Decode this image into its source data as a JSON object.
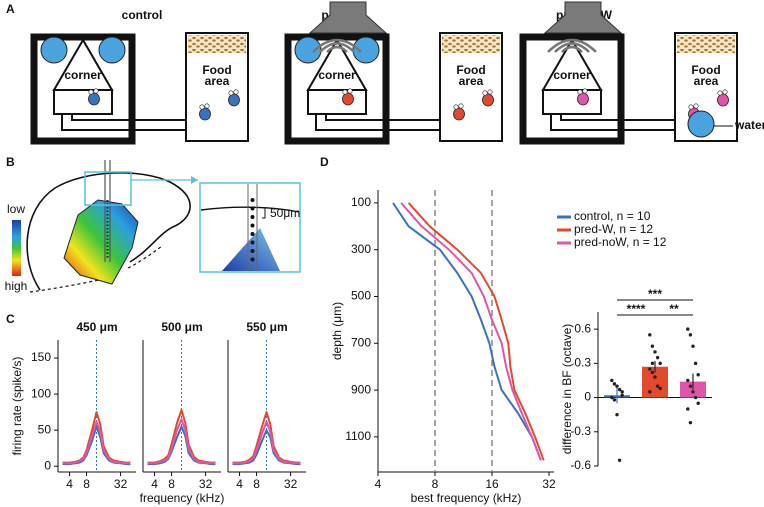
{
  "panel_labels": [
    "A",
    "B",
    "C",
    "D"
  ],
  "diagram_a": {
    "setups": [
      {
        "title": "control",
        "color": "#3b72bf",
        "corner": "corner",
        "food": [
          "Food",
          "area"
        ]
      },
      {
        "title": "pred-W",
        "color": "#e24a2c",
        "corner": "corner",
        "food": [
          "Food",
          "area"
        ]
      },
      {
        "title": "pred-noW",
        "color": "#e155a8",
        "corner": "corner",
        "food": [
          "Food",
          "area"
        ]
      }
    ],
    "water": "water"
  },
  "diagram_b": {
    "scale_low": "low",
    "scale_high": "high",
    "scale_bar": "50μm"
  },
  "chart_data": [
    {
      "type": "line",
      "title": "450 μm",
      "ylabel": "firing rate (spike/s)",
      "log_x": true,
      "x": [
        3,
        4,
        5,
        6,
        7,
        8,
        10,
        12,
        14,
        16,
        20,
        24,
        32,
        40,
        48
      ],
      "xlim": [
        2.5,
        60
      ],
      "xticks": [
        4,
        8,
        32
      ],
      "ylim": [
        -8,
        175
      ],
      "yticks": [
        0,
        50,
        100,
        150
      ],
      "vline": 12,
      "series": [
        {
          "name": "control",
          "color": "#3b72bf",
          "values": [
            3,
            3,
            4,
            5,
            8,
            15,
            35,
            55,
            40,
            18,
            8,
            5,
            4,
            3,
            3
          ]
        },
        {
          "name": "pred-W",
          "color": "#e24a2c",
          "values": [
            5,
            5,
            6,
            8,
            12,
            22,
            50,
            75,
            58,
            28,
            12,
            8,
            6,
            5,
            5
          ]
        },
        {
          "name": "pred-noW",
          "color": "#e155a8",
          "values": [
            4,
            4,
            5,
            7,
            10,
            18,
            42,
            62,
            48,
            22,
            10,
            6,
            5,
            4,
            4
          ]
        }
      ]
    },
    {
      "type": "line",
      "title": "500 μm",
      "xlabel": "frequency (kHz)",
      "log_x": true,
      "x": [
        3,
        4,
        5,
        6,
        7,
        8,
        10,
        12,
        14,
        16,
        20,
        24,
        32,
        40,
        48
      ],
      "xlim": [
        2.5,
        60
      ],
      "xticks": [
        4,
        8,
        32
      ],
      "ylim": [
        -8,
        175
      ],
      "vline": 12,
      "series": [
        {
          "name": "control",
          "color": "#3b72bf",
          "values": [
            3,
            3,
            4,
            6,
            10,
            20,
            40,
            55,
            42,
            18,
            8,
            5,
            4,
            3,
            3
          ]
        },
        {
          "name": "pred-W",
          "color": "#e24a2c",
          "values": [
            5,
            5,
            7,
            10,
            15,
            30,
            60,
            78,
            60,
            30,
            13,
            8,
            6,
            5,
            5
          ]
        },
        {
          "name": "pred-noW",
          "color": "#e155a8",
          "values": [
            4,
            4,
            6,
            8,
            12,
            24,
            50,
            65,
            50,
            24,
            10,
            6,
            5,
            4,
            4
          ]
        }
      ]
    },
    {
      "type": "line",
      "title": "550 μm",
      "log_x": true,
      "x": [
        3,
        4,
        5,
        6,
        7,
        8,
        10,
        12,
        14,
        16,
        20,
        24,
        32,
        40,
        48
      ],
      "xlim": [
        2.5,
        60
      ],
      "xticks": [
        4,
        8,
        32
      ],
      "ylim": [
        -8,
        175
      ],
      "vline": 12,
      "series": [
        {
          "name": "control",
          "color": "#3b72bf",
          "values": [
            3,
            3,
            4,
            5,
            8,
            16,
            35,
            50,
            40,
            18,
            8,
            5,
            4,
            3,
            3
          ]
        },
        {
          "name": "pred-W",
          "color": "#e24a2c",
          "values": [
            5,
            5,
            6,
            9,
            14,
            28,
            55,
            75,
            58,
            28,
            12,
            8,
            6,
            5,
            5
          ]
        },
        {
          "name": "pred-noW",
          "color": "#e155a8",
          "values": [
            4,
            4,
            5,
            7,
            11,
            22,
            45,
            62,
            48,
            22,
            10,
            6,
            5,
            4,
            4
          ]
        }
      ]
    },
    {
      "type": "line",
      "orientation": "horizontal",
      "xlabel": "best frequency (kHz)",
      "ylabel": "depth (μm)",
      "log_x": true,
      "y_inverted": true,
      "legend": "right",
      "y": [
        100,
        200,
        300,
        400,
        500,
        600,
        700,
        800,
        900,
        1000,
        1100,
        1200
      ],
      "xlim": [
        4,
        34
      ],
      "xticks": [
        4,
        8,
        16,
        32
      ],
      "ylim": [
        45,
        1250
      ],
      "yticks": [
        100,
        300,
        500,
        700,
        900,
        1100
      ],
      "vlines": [
        8,
        16
      ],
      "series": [
        {
          "name": "control, n = 10",
          "color": "#3b72bf",
          "values": [
            4.8,
            5.8,
            8.5,
            10.5,
            12.5,
            14,
            15.5,
            16.5,
            18,
            22,
            26,
            29
          ]
        },
        {
          "name": "pred-W, n = 12",
          "color": "#e24a2c",
          "values": [
            5.8,
            7.5,
            10.5,
            14,
            16.5,
            18,
            19.5,
            20,
            21,
            24,
            27,
            30
          ]
        },
        {
          "name": "pred-noW, n = 12",
          "color": "#e155a8",
          "values": [
            5.3,
            6.8,
            9.5,
            12.5,
            14.5,
            16,
            18,
            19,
            20.5,
            23,
            26,
            29
          ]
        }
      ]
    },
    {
      "type": "bar",
      "ylabel": "difference in BF (octave)",
      "values": [
        0.02,
        0.27,
        0.14
      ],
      "errors": [
        0.07,
        0.05,
        0.07
      ],
      "colors": [
        "#3b72bf",
        "#e24a2c",
        "#e155a8"
      ],
      "points": [
        [
          0.15,
          0.12,
          0.1,
          0.07,
          0.02,
          0.0,
          -0.02,
          -0.15,
          -0.55,
          0.05
        ],
        [
          0.55,
          0.45,
          0.4,
          0.35,
          0.3,
          0.25,
          0.22,
          0.18,
          0.1,
          0.08,
          0.05,
          0.3
        ],
        [
          0.6,
          0.55,
          0.45,
          0.3,
          0.2,
          0.15,
          0.1,
          0.05,
          0.0,
          -0.05,
          -0.1,
          -0.22
        ]
      ],
      "ylim": [
        -0.6,
        0.75
      ],
      "yticks": [
        -0.6,
        -0.3,
        0,
        0.3,
        0.6
      ],
      "annotations": [
        "***",
        "****",
        "**"
      ]
    }
  ]
}
